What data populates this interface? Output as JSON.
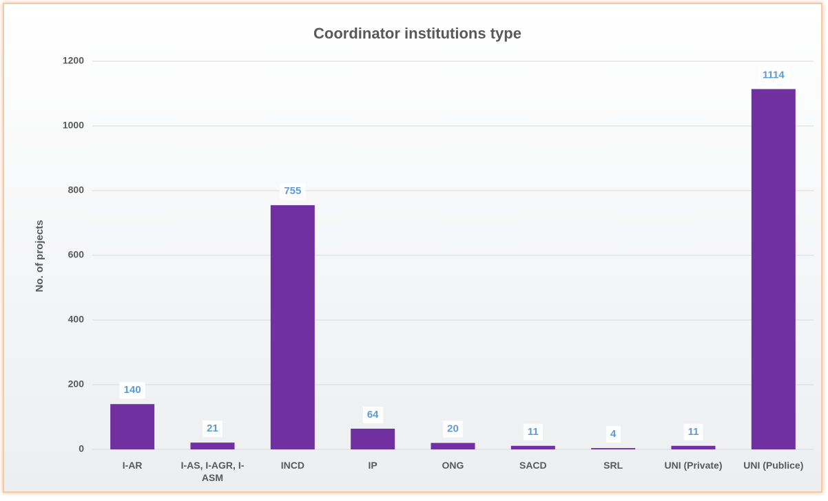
{
  "chart_data": {
    "type": "bar",
    "title": "Coordinator institutions type",
    "y_label": "No. of projects",
    "categories": [
      "I-AR",
      "I-AS, I-AGR, I-ASM",
      "INCD",
      "IP",
      "ONG",
      "SACD",
      "SRL",
      "UNI (Private)",
      "UNI (Publice)"
    ],
    "values": [
      140,
      21,
      755,
      64,
      20,
      11,
      4,
      11,
      1114
    ],
    "color": "#7030a0",
    "ylim": [
      0,
      1200
    ],
    "yticks": [
      0,
      200,
      400,
      600,
      800,
      1000,
      1200
    ],
    "grid": true
  }
}
